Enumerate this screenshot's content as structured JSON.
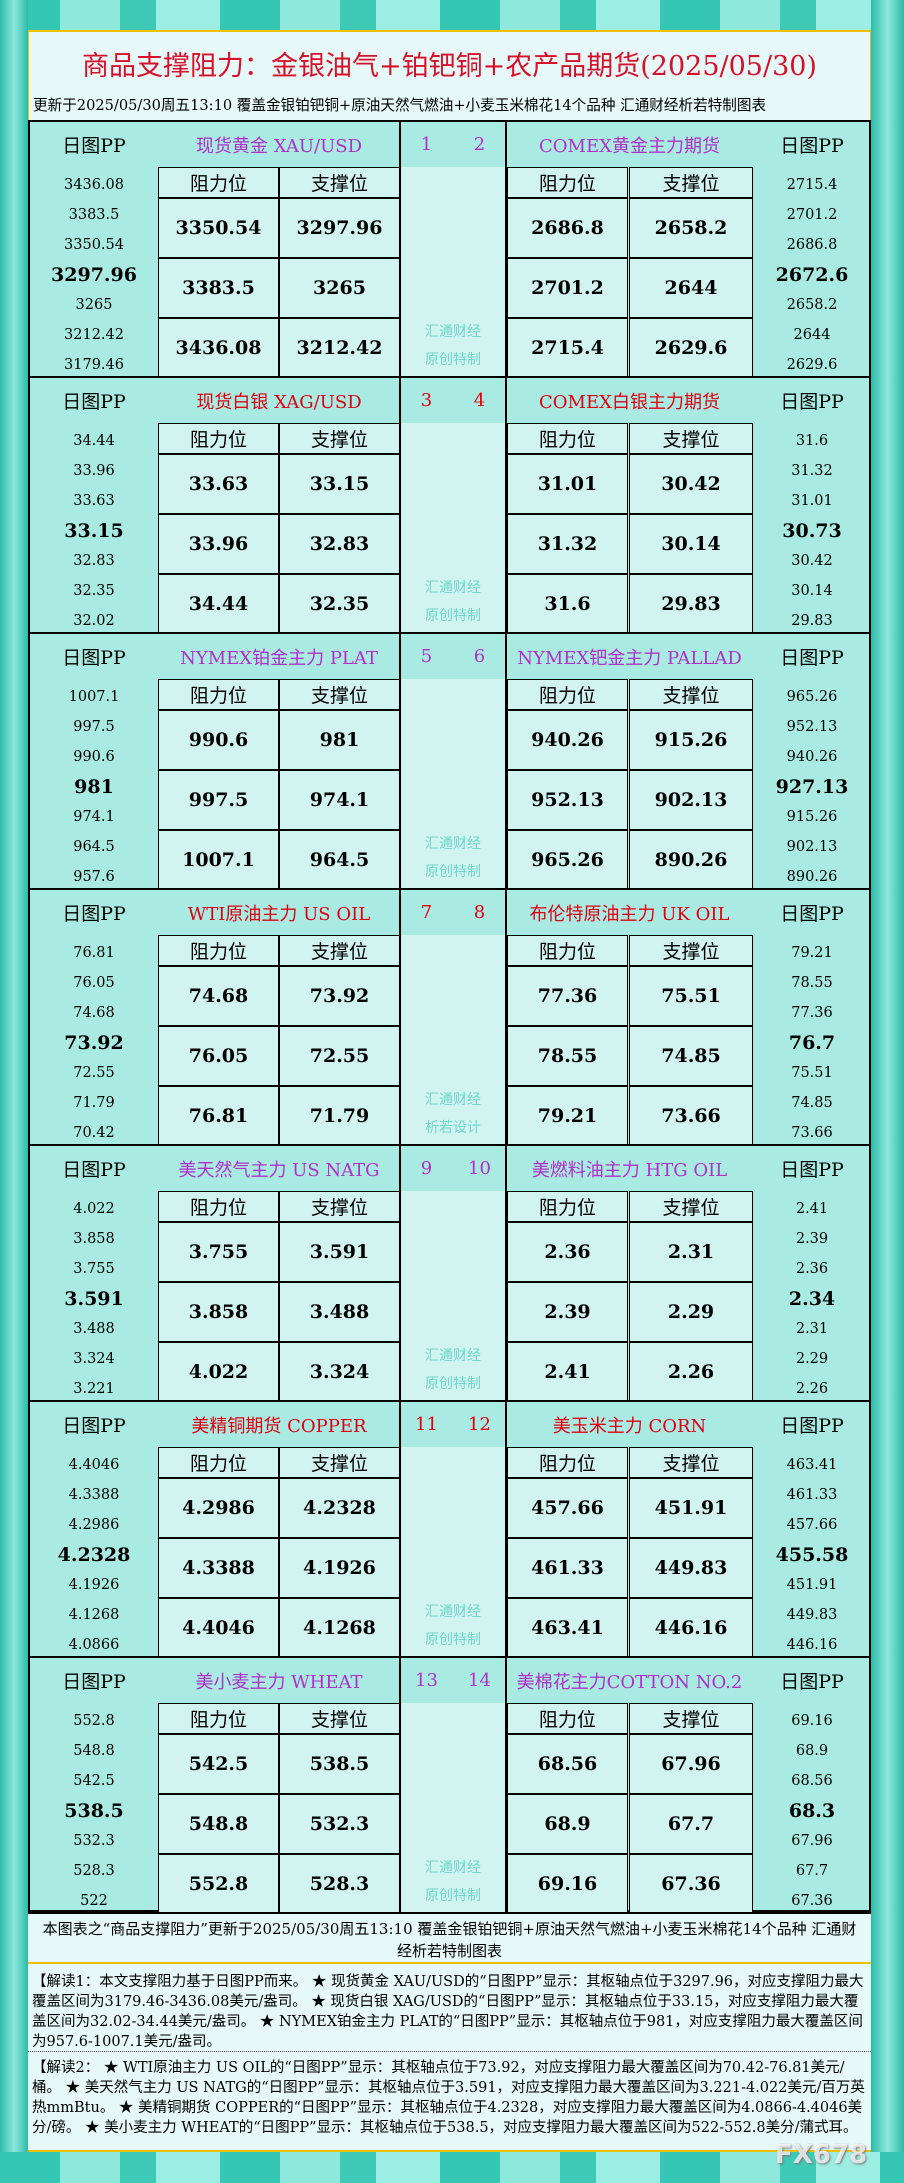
{
  "header": {
    "title": "商品支撑阻力：金银油气+铂钯铜+农产品期货(2025/05/30)",
    "subtitle": "更新于2025/05/30周五13:10 覆盖金银铂钯铜+原油天然气燃油+小麦玉米棉花14个品种 汇通财经析若特制图表"
  },
  "labels": {
    "pp": "日图PP",
    "resistance": "阻力位",
    "support": "支撑位"
  },
  "colors": {
    "purple": "#b030c8",
    "red": "#e00010"
  },
  "blocks": [
    {
      "color": "purple",
      "watermark": [
        "汇通财经",
        "原创特制"
      ],
      "left": {
        "num": "1",
        "title": "现货黄金 XAU/USD",
        "pp": [
          "3436.08",
          "3383.5",
          "3350.54",
          "3297.96",
          "3265",
          "3212.42",
          "3179.46"
        ],
        "rows": [
          [
            "3350.54",
            "3297.96"
          ],
          [
            "3383.5",
            "3265"
          ],
          [
            "3436.08",
            "3212.42"
          ]
        ]
      },
      "right": {
        "num": "2",
        "title": "COMEX黄金主力期货",
        "pp": [
          "2715.4",
          "2701.2",
          "2686.8",
          "2672.6",
          "2658.2",
          "2644",
          "2629.6"
        ],
        "rows": [
          [
            "2686.8",
            "2658.2"
          ],
          [
            "2701.2",
            "2644"
          ],
          [
            "2715.4",
            "2629.6"
          ]
        ]
      }
    },
    {
      "color": "red",
      "watermark": [
        "汇通财经",
        "原创特制"
      ],
      "left": {
        "num": "3",
        "title": "现货白银 XAG/USD",
        "pp": [
          "34.44",
          "33.96",
          "33.63",
          "33.15",
          "32.83",
          "32.35",
          "32.02"
        ],
        "rows": [
          [
            "33.63",
            "33.15"
          ],
          [
            "33.96",
            "32.83"
          ],
          [
            "34.44",
            "32.35"
          ]
        ]
      },
      "right": {
        "num": "4",
        "title": "COMEX白银主力期货",
        "pp": [
          "31.6",
          "31.32",
          "31.01",
          "30.73",
          "30.42",
          "30.14",
          "29.83"
        ],
        "rows": [
          [
            "31.01",
            "30.42"
          ],
          [
            "31.32",
            "30.14"
          ],
          [
            "31.6",
            "29.83"
          ]
        ]
      }
    },
    {
      "color": "purple",
      "watermark": [
        "汇通财经",
        "原创特制"
      ],
      "left": {
        "num": "5",
        "title": "NYMEX铂金主力 PLAT",
        "pp": [
          "1007.1",
          "997.5",
          "990.6",
          "981",
          "974.1",
          "964.5",
          "957.6"
        ],
        "rows": [
          [
            "990.6",
            "981"
          ],
          [
            "997.5",
            "974.1"
          ],
          [
            "1007.1",
            "964.5"
          ]
        ]
      },
      "right": {
        "num": "6",
        "title": "NYMEX钯金主力 PALLAD",
        "pp": [
          "965.26",
          "952.13",
          "940.26",
          "927.13",
          "915.26",
          "902.13",
          "890.26"
        ],
        "rows": [
          [
            "940.26",
            "915.26"
          ],
          [
            "952.13",
            "902.13"
          ],
          [
            "965.26",
            "890.26"
          ]
        ]
      }
    },
    {
      "color": "red",
      "watermark": [
        "汇通财经",
        "析若设计"
      ],
      "left": {
        "num": "7",
        "title": "WTI原油主力 US OIL",
        "pp": [
          "76.81",
          "76.05",
          "74.68",
          "73.92",
          "72.55",
          "71.79",
          "70.42"
        ],
        "rows": [
          [
            "74.68",
            "73.92"
          ],
          [
            "76.05",
            "72.55"
          ],
          [
            "76.81",
            "71.79"
          ]
        ]
      },
      "right": {
        "num": "8",
        "title": "布伦特原油主力 UK OIL",
        "pp": [
          "79.21",
          "78.55",
          "77.36",
          "76.7",
          "75.51",
          "74.85",
          "73.66"
        ],
        "rows": [
          [
            "77.36",
            "75.51"
          ],
          [
            "78.55",
            "74.85"
          ],
          [
            "79.21",
            "73.66"
          ]
        ]
      }
    },
    {
      "color": "purple",
      "watermark": [
        "汇通财经",
        "原创特制"
      ],
      "left": {
        "num": "9",
        "title": "美天然气主力 US NATG",
        "pp": [
          "4.022",
          "3.858",
          "3.755",
          "3.591",
          "3.488",
          "3.324",
          "3.221"
        ],
        "rows": [
          [
            "3.755",
            "3.591"
          ],
          [
            "3.858",
            "3.488"
          ],
          [
            "4.022",
            "3.324"
          ]
        ]
      },
      "right": {
        "num": "10",
        "title": "美燃料油主力 HTG OIL",
        "pp": [
          "2.41",
          "2.39",
          "2.36",
          "2.34",
          "2.31",
          "2.29",
          "2.26"
        ],
        "rows": [
          [
            "2.36",
            "2.31"
          ],
          [
            "2.39",
            "2.29"
          ],
          [
            "2.41",
            "2.26"
          ]
        ]
      }
    },
    {
      "color": "red",
      "watermark": [
        "汇通财经",
        "原创特制"
      ],
      "left": {
        "num": "11",
        "title": "美精铜期货 COPPER",
        "pp": [
          "4.4046",
          "4.3388",
          "4.2986",
          "4.2328",
          "4.1926",
          "4.1268",
          "4.0866"
        ],
        "rows": [
          [
            "4.2986",
            "4.2328"
          ],
          [
            "4.3388",
            "4.1926"
          ],
          [
            "4.4046",
            "4.1268"
          ]
        ]
      },
      "right": {
        "num": "12",
        "title": "美玉米主力 CORN",
        "pp": [
          "463.41",
          "461.33",
          "457.66",
          "455.58",
          "451.91",
          "449.83",
          "446.16"
        ],
        "rows": [
          [
            "457.66",
            "451.91"
          ],
          [
            "461.33",
            "449.83"
          ],
          [
            "463.41",
            "446.16"
          ]
        ]
      }
    },
    {
      "color": "purple",
      "watermark": [
        "汇通财经",
        "原创特制"
      ],
      "left": {
        "num": "13",
        "title": "美小麦主力 WHEAT",
        "pp": [
          "552.8",
          "548.8",
          "542.5",
          "538.5",
          "532.3",
          "528.3",
          "522"
        ],
        "rows": [
          [
            "542.5",
            "538.5"
          ],
          [
            "548.8",
            "532.3"
          ],
          [
            "552.8",
            "528.3"
          ]
        ]
      },
      "right": {
        "num": "14",
        "title": "美棉花主力COTTON NO.2",
        "pp": [
          "69.16",
          "68.9",
          "68.56",
          "68.3",
          "67.96",
          "67.7",
          "67.36"
        ],
        "rows": [
          [
            "68.56",
            "67.96"
          ],
          [
            "68.9",
            "67.7"
          ],
          [
            "69.16",
            "67.36"
          ]
        ]
      }
    }
  ],
  "footer": {
    "note": "本图表之“商品支撑阻力”更新于2025/05/30周五13:10 覆盖金银铂钯铜+原油天然气燃油+小麦玉米棉花14个品种 汇通财经析若特制图表",
    "explain1": "【解读1：本文支撑阻力基于日图PP而来。 ★ 现货黄金 XAU/USD的“日图PP”显示：其枢轴点位于3297.96，对应支撑阻力最大覆盖区间为3179.46-3436.08美元/盎司。 ★ 现货白银 XAG/USD的“日图PP”显示：其枢轴点位于33.15，对应支撑阻力最大覆盖区间为32.02-34.44美元/盎司。 ★ NYMEX铂金主力 PLAT的“日图PP”显示：其枢轴点位于981，对应支撑阻力最大覆盖区间为957.6-1007.1美元/盎司。",
    "explain2": "【解读2： ★ WTI原油主力 US OIL的“日图PP”显示：其枢轴点位于73.92，对应支撑阻力最大覆盖区间为70.42-76.81美元/桶。 ★ 美天然气主力 US NATG的“日图PP”显示：其枢轴点位于3.591，对应支撑阻力最大覆盖区间为3.221-4.022美元/百万英热mmBtu。 ★ 美精铜期货 COPPER的“日图PP”显示：其枢轴点位于4.2328，对应支撑阻力最大覆盖区间为4.0866-4.4046美分/磅。 ★ 美小麦主力 WHEAT的“日图PP”显示：其枢轴点位于538.5，对应支撑阻力最大覆盖区间为522-552.8美分/蒲式耳。",
    "watermark": "FX678"
  }
}
